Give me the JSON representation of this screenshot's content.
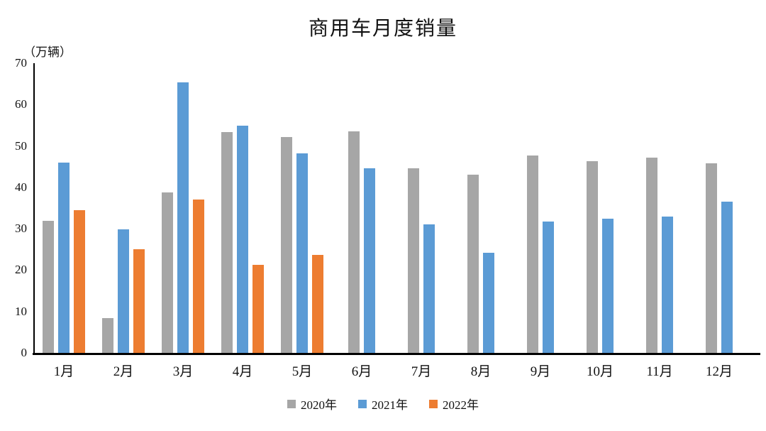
{
  "title": "商用车月度销量",
  "y_axis": {
    "unit_label": "（万辆）",
    "ticks": [
      70,
      60,
      50,
      40,
      30,
      20,
      10,
      0
    ],
    "max": 70,
    "min": 0
  },
  "colors": {
    "series_2020": "#A6A6A6",
    "series_2021": "#5B9BD5",
    "series_2022": "#ED7D31",
    "axis": "#000000",
    "text": "#111111"
  },
  "chart_data": {
    "type": "bar",
    "title": "商用车月度销量",
    "xlabel": "",
    "ylabel": "（万辆）",
    "ylim": [
      0,
      70
    ],
    "grid": false,
    "legend_position": "bottom",
    "categories": [
      "1月",
      "2月",
      "3月",
      "4月",
      "5月",
      "6月",
      "7月",
      "8月",
      "9月",
      "10月",
      "11月",
      "12月"
    ],
    "series": [
      {
        "name": "2020年",
        "color": "#A6A6A6",
        "values": [
          32.0,
          8.4,
          38.7,
          53.4,
          52.1,
          53.6,
          44.6,
          43.1,
          47.7,
          46.4,
          47.1,
          45.8
        ]
      },
      {
        "name": "2021年",
        "color": "#5B9BD5",
        "values": [
          46.0,
          29.8,
          65.4,
          54.9,
          48.2,
          44.6,
          31.1,
          24.2,
          31.7,
          32.5,
          33.0,
          36.5
        ]
      },
      {
        "name": "2022年",
        "color": "#ED7D31",
        "values": [
          34.5,
          25.0,
          37.0,
          21.3,
          23.6,
          null,
          null,
          null,
          null,
          null,
          null,
          null
        ]
      }
    ]
  },
  "legend": {
    "items": [
      {
        "label": "2020年",
        "color": "#A6A6A6"
      },
      {
        "label": "2021年",
        "color": "#5B9BD5"
      },
      {
        "label": "2022年",
        "color": "#ED7D31"
      }
    ]
  }
}
